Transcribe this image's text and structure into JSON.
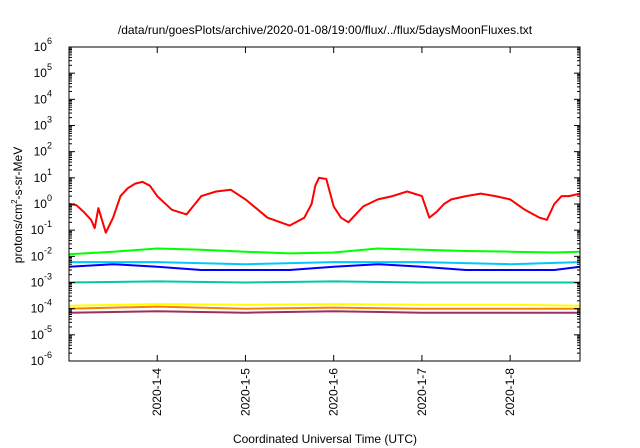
{
  "chart_data": {
    "type": "line",
    "title": "/data/run/goesPlots/archive/2020-01-08/19:00/flux/../flux/5daysMoonFluxes.txt",
    "xlabel": "Coordinated Universal Time (UTC)",
    "ylabel": {
      "base": "protons/cm",
      "sup": "2",
      "rest": "-s-sr-MeV"
    },
    "x_scale": "date",
    "xlim": [
      "2020-01-03T00:00",
      "2020-01-08T19:00"
    ],
    "x_ticks": [
      {
        "date": "2020-01-04",
        "label": "2020-1-4"
      },
      {
        "date": "2020-01-05",
        "label": "2020-1-5"
      },
      {
        "date": "2020-01-06",
        "label": "2020-1-6"
      },
      {
        "date": "2020-01-07",
        "label": "2020-1-7"
      },
      {
        "date": "2020-01-08",
        "label": "2020-1-8"
      }
    ],
    "y_scale": "log",
    "ylim": [
      1e-06,
      1000000.0
    ],
    "y_ticks": [
      {
        "value": 1e-06,
        "base": "10",
        "exp": "-6"
      },
      {
        "value": 1e-05,
        "base": "10",
        "exp": "-5"
      },
      {
        "value": 0.0001,
        "base": "10",
        "exp": "-4"
      },
      {
        "value": 0.001,
        "base": "10",
        "exp": "-3"
      },
      {
        "value": 0.01,
        "base": "10",
        "exp": "-2"
      },
      {
        "value": 0.1,
        "base": "10",
        "exp": "-1"
      },
      {
        "value": 1,
        "base": "10",
        "exp": "0"
      },
      {
        "value": 10,
        "base": "10",
        "exp": "1"
      },
      {
        "value": 100,
        "base": "10",
        "exp": "2"
      },
      {
        "value": 1000,
        "base": "10",
        "exp": "3"
      },
      {
        "value": 10000,
        "base": "10",
        "exp": "4"
      },
      {
        "value": 100000,
        "base": "10",
        "exp": "5"
      },
      {
        "value": 1000000,
        "base": "10",
        "exp": "6"
      }
    ],
    "grid": false,
    "legend": "none",
    "series": [
      {
        "color": "#ff0000",
        "x": [
          "2020-01-03T00:00",
          "2020-01-03T02:00",
          "2020-01-03T04:00",
          "2020-01-03T06:00",
          "2020-01-03T07:00",
          "2020-01-03T08:00",
          "2020-01-03T10:00",
          "2020-01-03T12:00",
          "2020-01-03T14:00",
          "2020-01-03T16:00",
          "2020-01-03T18:00",
          "2020-01-03T20:00",
          "2020-01-03T22:00",
          "2020-01-04T00:00",
          "2020-01-04T04:00",
          "2020-01-04T08:00",
          "2020-01-04T12:00",
          "2020-01-04T16:00",
          "2020-01-04T20:00",
          "2020-01-05T00:00",
          "2020-01-05T06:00",
          "2020-01-05T12:00",
          "2020-01-05T16:00",
          "2020-01-05T18:00",
          "2020-01-05T19:00",
          "2020-01-05T20:00",
          "2020-01-05T22:00",
          "2020-01-06T00:00",
          "2020-01-06T02:00",
          "2020-01-06T04:00",
          "2020-01-06T06:00",
          "2020-01-06T08:00",
          "2020-01-06T12:00",
          "2020-01-06T16:00",
          "2020-01-06T20:00",
          "2020-01-07T00:00",
          "2020-01-07T02:00",
          "2020-01-07T04:00",
          "2020-01-07T06:00",
          "2020-01-07T08:00",
          "2020-01-07T12:00",
          "2020-01-07T16:00",
          "2020-01-07T20:00",
          "2020-01-08T00:00",
          "2020-01-08T04:00",
          "2020-01-08T08:00",
          "2020-01-08T10:00",
          "2020-01-08T12:00",
          "2020-01-08T14:00",
          "2020-01-08T16:00",
          "2020-01-08T19:00"
        ],
        "y": [
          1.0,
          0.9,
          0.5,
          0.25,
          0.12,
          0.7,
          0.08,
          0.3,
          2.0,
          4.0,
          6.0,
          7.0,
          5.0,
          2.0,
          0.6,
          0.4,
          2.0,
          3.0,
          3.5,
          1.5,
          0.3,
          0.15,
          0.3,
          1.0,
          5.0,
          10.0,
          9.0,
          0.8,
          0.3,
          0.2,
          0.4,
          0.8,
          1.5,
          2.0,
          3.0,
          2.0,
          0.3,
          0.5,
          1.0,
          1.5,
          2.0,
          2.5,
          2.0,
          1.5,
          0.6,
          0.3,
          0.25,
          1.0,
          2.0,
          2.0,
          2.5
        ]
      },
      {
        "color": "#00ff00",
        "x": [
          "2020-01-03T00:00",
          "2020-01-03T12:00",
          "2020-01-04T00:00",
          "2020-01-04T12:00",
          "2020-01-05T00:00",
          "2020-01-05T12:00",
          "2020-01-06T00:00",
          "2020-01-06T12:00",
          "2020-01-07T00:00",
          "2020-01-07T12:00",
          "2020-01-08T00:00",
          "2020-01-08T12:00",
          "2020-01-08T19:00"
        ],
        "y": [
          0.012,
          0.015,
          0.02,
          0.018,
          0.015,
          0.013,
          0.014,
          0.02,
          0.018,
          0.016,
          0.015,
          0.014,
          0.015
        ]
      },
      {
        "color": "#0000ff",
        "x": [
          "2020-01-03T00:00",
          "2020-01-03T12:00",
          "2020-01-04T00:00",
          "2020-01-04T12:00",
          "2020-01-05T00:00",
          "2020-01-05T12:00",
          "2020-01-06T00:00",
          "2020-01-06T12:00",
          "2020-01-07T00:00",
          "2020-01-07T12:00",
          "2020-01-08T00:00",
          "2020-01-08T12:00",
          "2020-01-08T19:00"
        ],
        "y": [
          0.004,
          0.005,
          0.004,
          0.003,
          0.003,
          0.003,
          0.004,
          0.005,
          0.004,
          0.003,
          0.003,
          0.003,
          0.004
        ]
      },
      {
        "color": "#00c8ff",
        "x": [
          "2020-01-03T00:00",
          "2020-01-04T00:00",
          "2020-01-05T00:00",
          "2020-01-06T00:00",
          "2020-01-07T00:00",
          "2020-01-08T00:00",
          "2020-01-08T19:00"
        ],
        "y": [
          0.006,
          0.006,
          0.005,
          0.006,
          0.006,
          0.005,
          0.006
        ]
      },
      {
        "color": "#00c8a0",
        "x": [
          "2020-01-03T00:00",
          "2020-01-04T00:00",
          "2020-01-05T00:00",
          "2020-01-06T00:00",
          "2020-01-07T00:00",
          "2020-01-08T00:00",
          "2020-01-08T19:00"
        ],
        "y": [
          0.001,
          0.0011,
          0.001,
          0.0011,
          0.001,
          0.001,
          0.001
        ]
      },
      {
        "color": "#ffff00",
        "x": [
          "2020-01-03T00:00",
          "2020-01-04T00:00",
          "2020-01-05T00:00",
          "2020-01-06T00:00",
          "2020-01-07T00:00",
          "2020-01-08T00:00",
          "2020-01-08T19:00"
        ],
        "y": [
          0.00013,
          0.00015,
          0.00014,
          0.00015,
          0.00014,
          0.00014,
          0.00013
        ]
      },
      {
        "color": "#ff8000",
        "x": [
          "2020-01-03T00:00",
          "2020-01-04T00:00",
          "2020-01-05T00:00",
          "2020-01-06T00:00",
          "2020-01-07T00:00",
          "2020-01-08T00:00",
          "2020-01-08T19:00"
        ],
        "y": [
          0.0001,
          0.00012,
          0.0001,
          0.00011,
          0.0001,
          0.0001,
          0.0001
        ]
      },
      {
        "color": "#9b3060",
        "x": [
          "2020-01-03T00:00",
          "2020-01-04T00:00",
          "2020-01-05T00:00",
          "2020-01-06T00:00",
          "2020-01-07T00:00",
          "2020-01-08T00:00",
          "2020-01-08T19:00"
        ],
        "y": [
          7e-05,
          8e-05,
          7e-05,
          8e-05,
          7e-05,
          7e-05,
          7e-05
        ]
      }
    ]
  }
}
